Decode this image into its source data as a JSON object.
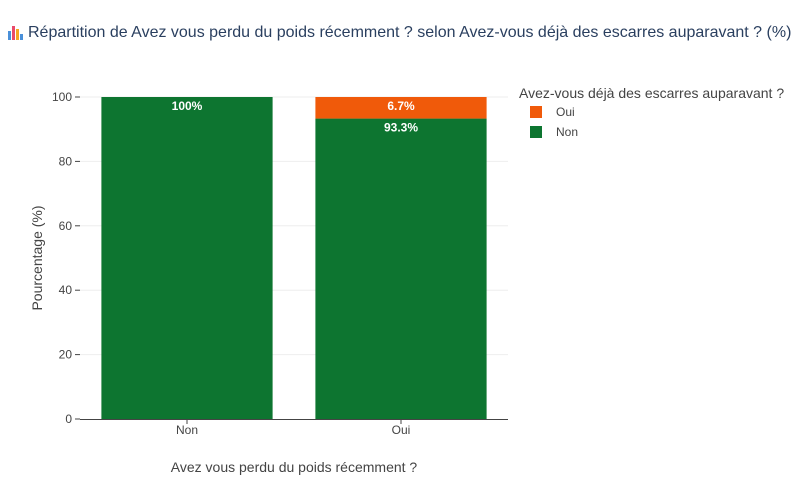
{
  "title": "Répartition de Avez vous perdu du poids récemment ? selon Avez-vous déjà des escarres auparavant ? (%)",
  "title_icon": "bar-chart-icon",
  "chart_data": {
    "type": "bar",
    "stacked": true,
    "categories": [
      "Non",
      "Oui"
    ],
    "series": [
      {
        "name": "Non",
        "values": [
          100,
          93.3
        ],
        "labels": [
          "100%",
          "93.3%"
        ],
        "color": "#0d7530"
      },
      {
        "name": "Oui",
        "values": [
          0,
          6.7
        ],
        "labels": [
          "",
          "6.7%"
        ],
        "color": "#f05a0a"
      }
    ],
    "xlabel": "Avez vous perdu du poids récemment ?",
    "ylabel": "Pourcentage (%)",
    "ylim": [
      0,
      100
    ],
    "yticks": [
      0,
      20,
      40,
      60,
      80,
      100
    ],
    "grid": true,
    "legend": {
      "title": "Avez-vous déjà des escarres auparavant ?",
      "placement": "top-right",
      "order": [
        "Oui",
        "Non"
      ]
    }
  }
}
